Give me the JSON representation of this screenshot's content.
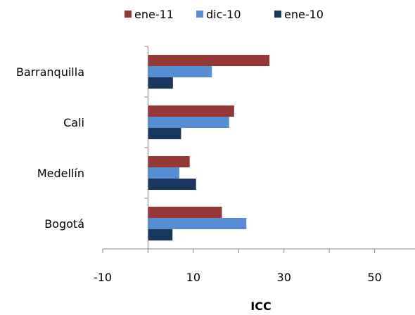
{
  "chart_data": {
    "type": "bar",
    "orientation": "horizontal",
    "categories": [
      "Barranquilla",
      "Cali",
      "Medellín",
      "Bogotá"
    ],
    "series": [
      {
        "name": "ene-11",
        "color": "#953735",
        "values": [
          26.8,
          19.0,
          9.2,
          16.3
        ]
      },
      {
        "name": "dic-10",
        "color": "#558ED5",
        "values": [
          14.1,
          17.9,
          6.9,
          21.7
        ]
      },
      {
        "name": "ene-10",
        "color": "#17375E",
        "values": [
          5.5,
          7.3,
          10.6,
          5.4
        ]
      }
    ],
    "xlabel": "ICC",
    "ylabel": "",
    "xlim": [
      -10,
      60
    ],
    "xticks": [
      -10,
      10,
      30,
      50
    ],
    "grid": false,
    "legend_position": "top"
  }
}
